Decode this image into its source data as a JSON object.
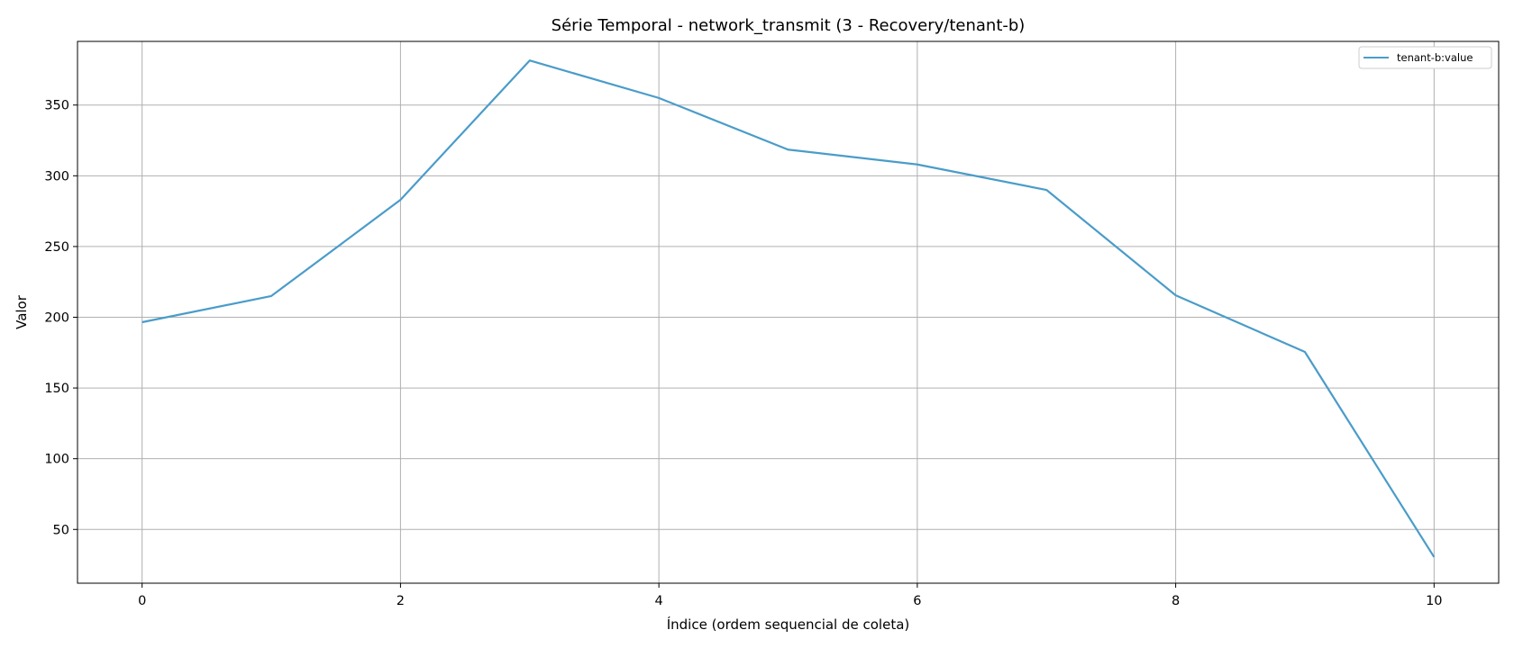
{
  "chart_data": {
    "type": "line",
    "title": "Série Temporal - network_transmit (3 - Recovery/tenant-b)",
    "xlabel": "Índice (ordem sequencial de coleta)",
    "ylabel": "Valor",
    "xlim": [
      -0.5,
      10.5
    ],
    "ylim": [
      12,
      395
    ],
    "xticks": [
      0,
      2,
      4,
      6,
      8,
      10
    ],
    "yticks": [
      50,
      100,
      150,
      200,
      250,
      300,
      350
    ],
    "grid": true,
    "legend_position": "top-right",
    "x": [
      0,
      1,
      2,
      3,
      4,
      5,
      6,
      7,
      8,
      9,
      10
    ],
    "series": [
      {
        "name": "tenant-b:value",
        "color": "#4a9cc9",
        "values": [
          196.5,
          215,
          283,
          381.5,
          355,
          318.5,
          308,
          290,
          215.5,
          175.5,
          30.5
        ]
      }
    ]
  }
}
